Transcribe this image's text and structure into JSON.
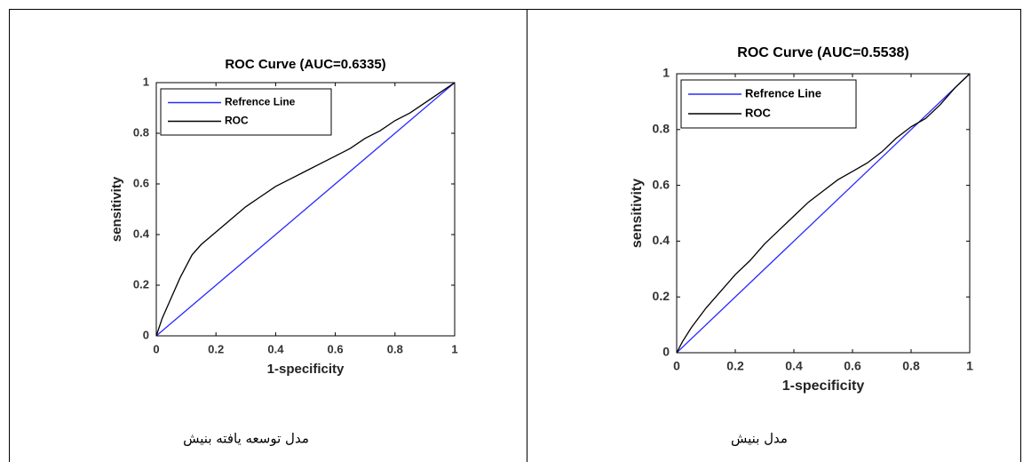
{
  "chart_data": [
    {
      "type": "line",
      "title": "ROC Curve (AUC=0.6335)",
      "xlabel": "1-specificity",
      "ylabel": "sensitivity",
      "caption": "مدل توسعه یافته بنیش",
      "xlim": [
        0,
        1
      ],
      "ylim": [
        0,
        1
      ],
      "xticks": [
        0,
        0.2,
        0.4,
        0.6,
        0.8,
        1
      ],
      "yticks": [
        0,
        0.2,
        0.4,
        0.6,
        0.8,
        1
      ],
      "legend": "upper left",
      "series": [
        {
          "name": "Refrence Line",
          "color": "#2a2aff",
          "x": [
            0,
            1
          ],
          "values": [
            0,
            1
          ]
        },
        {
          "name": "ROC",
          "color": "#000000",
          "x": [
            0,
            0.02,
            0.05,
            0.08,
            0.12,
            0.15,
            0.2,
            0.25,
            0.3,
            0.35,
            0.4,
            0.45,
            0.5,
            0.55,
            0.6,
            0.65,
            0.7,
            0.75,
            0.8,
            0.85,
            0.9,
            0.95,
            1
          ],
          "values": [
            0,
            0.07,
            0.15,
            0.23,
            0.32,
            0.36,
            0.41,
            0.46,
            0.51,
            0.55,
            0.59,
            0.62,
            0.65,
            0.68,
            0.71,
            0.74,
            0.78,
            0.81,
            0.85,
            0.88,
            0.92,
            0.96,
            1
          ]
        }
      ]
    },
    {
      "type": "line",
      "title": "ROC Curve (AUC=0.5538)",
      "xlabel": "1-specificity",
      "ylabel": "sensitivity",
      "caption": "مدل بنیش",
      "xlim": [
        0,
        1
      ],
      "ylim": [
        0,
        1
      ],
      "xticks": [
        0,
        0.2,
        0.4,
        0.6,
        0.8,
        1
      ],
      "yticks": [
        0,
        0.2,
        0.4,
        0.6,
        0.8,
        1
      ],
      "legend": "upper left",
      "series": [
        {
          "name": "Refrence Line",
          "color": "#2a2aff",
          "x": [
            0,
            1
          ],
          "values": [
            0,
            1
          ]
        },
        {
          "name": "ROC",
          "color": "#000000",
          "x": [
            0,
            0.02,
            0.05,
            0.1,
            0.15,
            0.2,
            0.25,
            0.3,
            0.35,
            0.4,
            0.45,
            0.5,
            0.55,
            0.6,
            0.65,
            0.7,
            0.75,
            0.8,
            0.85,
            0.9,
            0.95,
            1
          ],
          "values": [
            0,
            0.04,
            0.09,
            0.16,
            0.22,
            0.28,
            0.33,
            0.39,
            0.44,
            0.49,
            0.54,
            0.58,
            0.62,
            0.65,
            0.68,
            0.72,
            0.77,
            0.81,
            0.84,
            0.89,
            0.95,
            1
          ]
        }
      ]
    }
  ]
}
